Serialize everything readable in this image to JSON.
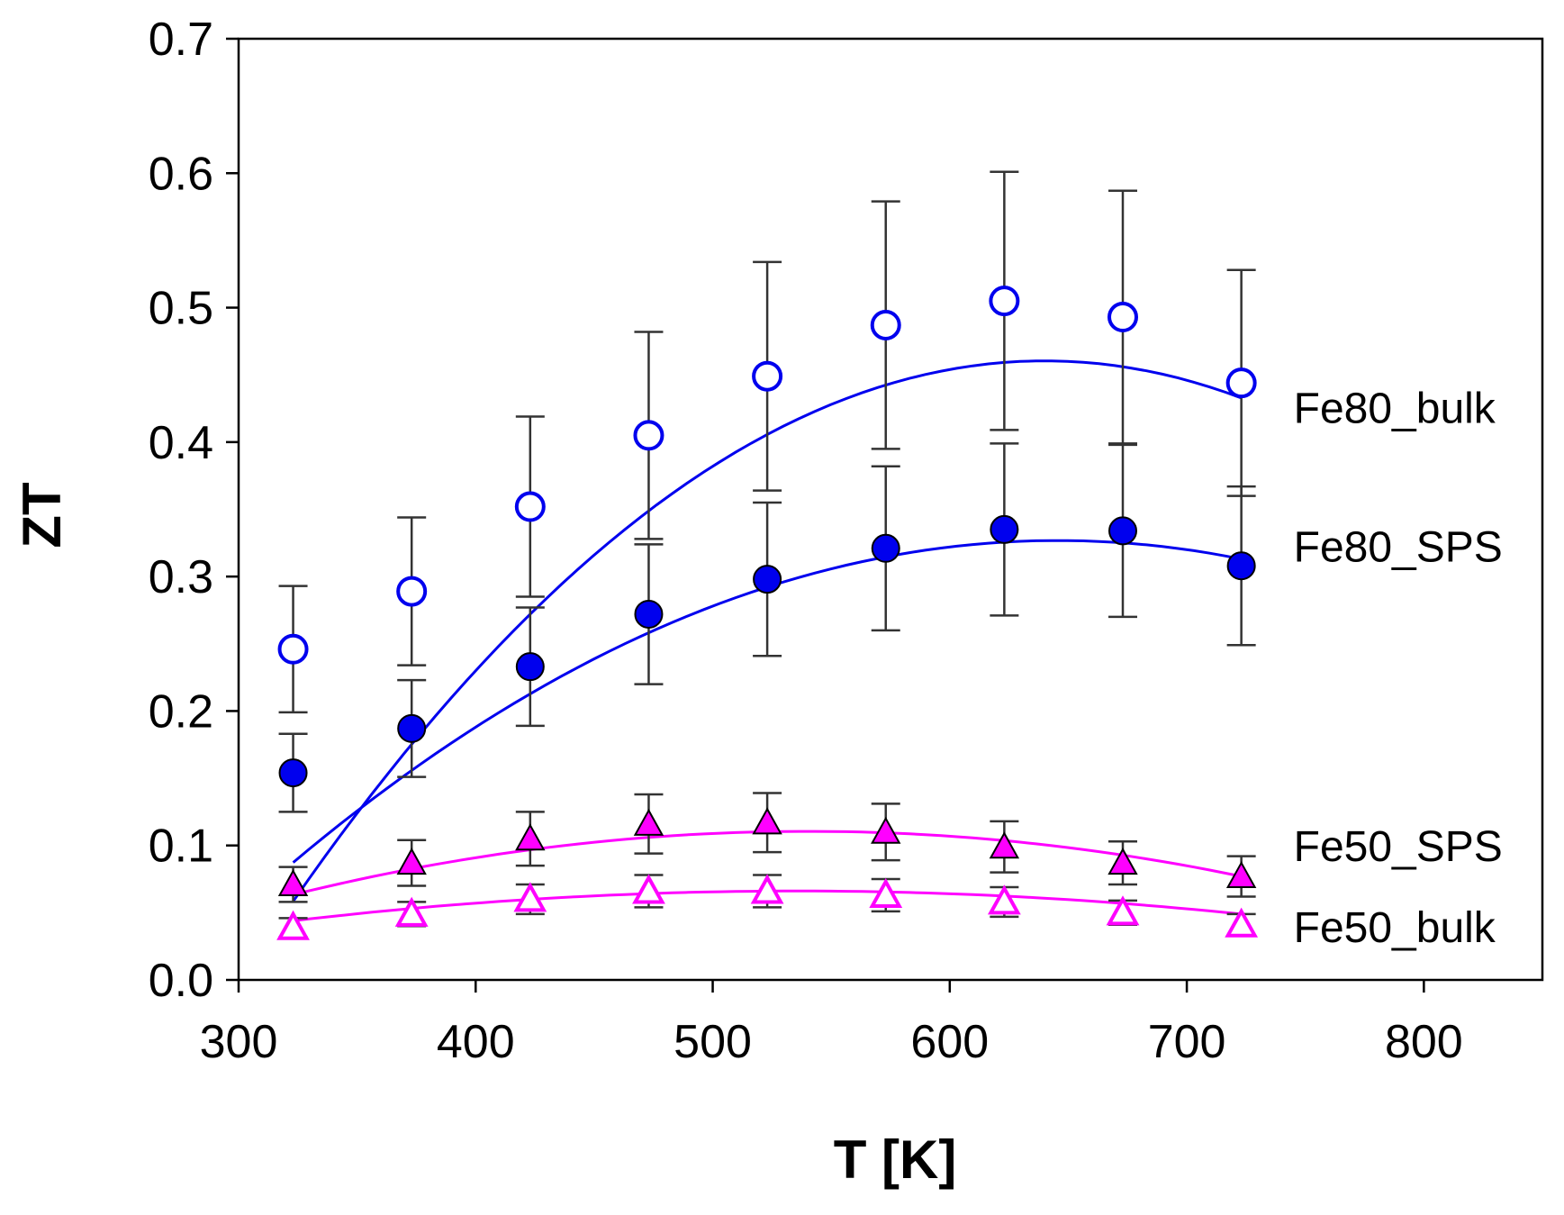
{
  "chart_data": {
    "type": "scatter",
    "title": "",
    "xlabel": "T [K]",
    "ylabel": "ZT",
    "xlim": [
      300,
      850
    ],
    "ylim": [
      0.0,
      0.7
    ],
    "xticks": [
      300,
      400,
      500,
      600,
      700,
      800
    ],
    "xtick_labels": [
      "300",
      "400",
      "500",
      "600",
      "700",
      "800"
    ],
    "yticks": [
      0.0,
      0.1,
      0.2,
      0.3,
      0.4,
      0.5,
      0.6,
      0.7
    ],
    "ytick_labels": [
      "0.0",
      "0.1",
      "0.2",
      "0.3",
      "0.4",
      "0.5",
      "0.6",
      "0.7"
    ],
    "grid": false,
    "legend": "inline labels at right",
    "x": [
      323,
      373,
      423,
      473,
      523,
      573,
      623,
      673,
      723
    ],
    "series": [
      {
        "name": "Fe80_bulk",
        "color": "#0000ee",
        "marker": "circle-open",
        "values": [
          0.246,
          0.289,
          0.352,
          0.405,
          0.449,
          0.487,
          0.505,
          0.493,
          0.444
        ],
        "err": [
          0.047,
          0.055,
          0.067,
          0.077,
          0.085,
          0.092,
          0.096,
          0.094,
          0.084
        ],
        "fit": [
          -4e-06,
          0.00512,
          -1.178
        ]
      },
      {
        "name": "Fe80_SPS",
        "color": "#0000ee",
        "marker": "circle-filled",
        "values": [
          0.154,
          0.187,
          0.233,
          0.272,
          0.298,
          0.321,
          0.335,
          0.334,
          0.308
        ],
        "err": [
          0.029,
          0.036,
          0.044,
          0.052,
          0.057,
          0.061,
          0.064,
          0.064,
          0.059
        ],
        "fit": [
          -2.3e-06,
          0.00297,
          -0.632
        ]
      },
      {
        "name": "Fe50_SPS",
        "color": "#ff00ff",
        "marker": "triangle-filled",
        "values": [
          0.071,
          0.087,
          0.105,
          0.116,
          0.117,
          0.11,
          0.099,
          0.087,
          0.077
        ],
        "err": [
          0.013,
          0.017,
          0.02,
          0.022,
          0.022,
          0.021,
          0.019,
          0.016,
          0.015
        ],
        "fit": [
          -1e-06,
          0.00108,
          -0.1811
        ]
      },
      {
        "name": "Fe50_bulk",
        "color": "#ff00ff",
        "marker": "triangle-open",
        "values": [
          0.039,
          0.049,
          0.06,
          0.066,
          0.066,
          0.063,
          0.058,
          0.05,
          0.041
        ],
        "err": [
          0.007,
          0.009,
          0.011,
          0.012,
          0.012,
          0.012,
          0.011,
          0.009,
          0.008
        ],
        "fit": [
          -4.9e-07,
          0.000525,
          -0.0745
        ]
      }
    ]
  }
}
